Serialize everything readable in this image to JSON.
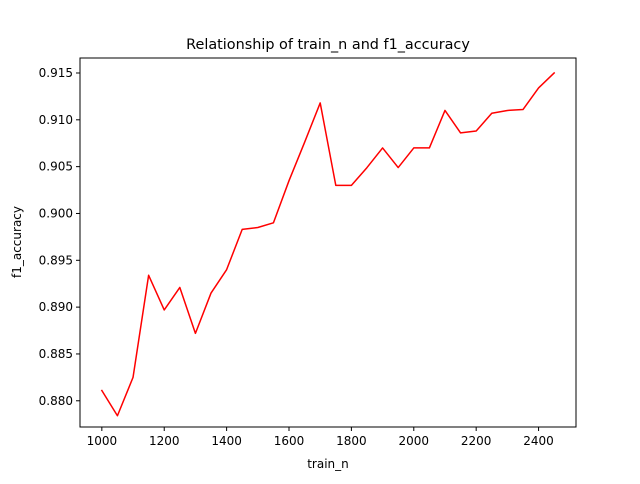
{
  "chart_data": {
    "type": "line",
    "title": "Relationship of train_n and f1_accuracy",
    "xlabel": "train_n",
    "ylabel": "f1_accuracy",
    "xlim": [
      930,
      2520
    ],
    "ylim": [
      0.8772,
      0.9166
    ],
    "xticks": [
      1000,
      1200,
      1400,
      1600,
      1800,
      2000,
      2200,
      2400
    ],
    "yticks": [
      0.88,
      0.885,
      0.89,
      0.895,
      0.9,
      0.905,
      0.91,
      0.915
    ],
    "xtick_labels": [
      "1000",
      "1200",
      "1400",
      "1600",
      "1800",
      "2000",
      "2200",
      "2400"
    ],
    "ytick_labels": [
      "0.880",
      "0.885",
      "0.890",
      "0.895",
      "0.900",
      "0.905",
      "0.910",
      "0.915"
    ],
    "grid": false,
    "series": [
      {
        "color": "#ff0000",
        "x": [
          1000,
          1050,
          1100,
          1150,
          1200,
          1250,
          1300,
          1350,
          1400,
          1450,
          1500,
          1550,
          1600,
          1650,
          1700,
          1750,
          1800,
          1850,
          1900,
          1950,
          2000,
          2050,
          2100,
          2150,
          2200,
          2250,
          2300,
          2350,
          2400,
          2450
        ],
        "y": [
          0.8811,
          0.8784,
          0.8825,
          0.8934,
          0.8897,
          0.8921,
          0.8872,
          0.8915,
          0.894,
          0.8983,
          0.8985,
          0.899,
          0.9035,
          0.9076,
          0.9118,
          0.903,
          0.903,
          0.9049,
          0.907,
          0.9049,
          0.907,
          0.907,
          0.911,
          0.9086,
          0.9088,
          0.9107,
          0.911,
          0.9111,
          0.9134,
          0.915
        ]
      }
    ]
  }
}
